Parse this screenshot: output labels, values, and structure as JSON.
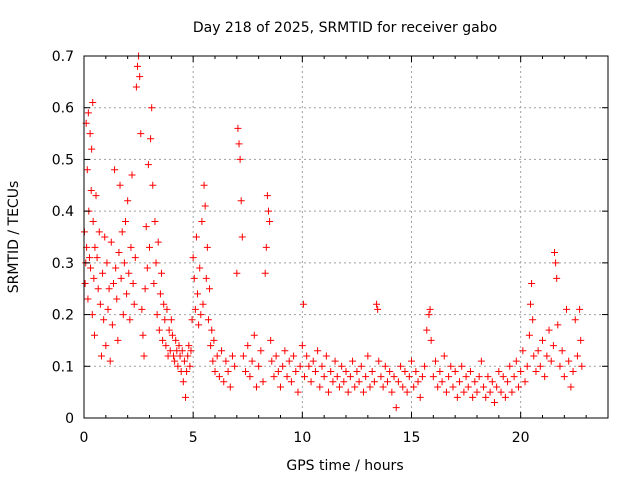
{
  "chart_data": {
    "type": "scatter",
    "title": "Day 218 of 2025, SRMTID for receiver gabo",
    "xlabel": "GPS time / hours",
    "ylabel": "SRMTID / TECUs",
    "xlim": [
      0,
      24
    ],
    "ylim": [
      0,
      0.7
    ],
    "xticks": [
      0,
      5,
      10,
      15,
      20
    ],
    "yticks": [
      0,
      0.1,
      0.2,
      0.3,
      0.4,
      0.5,
      0.6,
      0.7
    ],
    "grid": true,
    "marker": "+",
    "color": "#ff0000",
    "series": [
      {
        "name": "SRMTID",
        "points": [
          [
            0.02,
            0.36
          ],
          [
            0.05,
            0.26
          ],
          [
            0.08,
            0.3
          ],
          [
            0.1,
            0.57
          ],
          [
            0.12,
            0.33
          ],
          [
            0.15,
            0.48
          ],
          [
            0.18,
            0.23
          ],
          [
            0.2,
            0.59
          ],
          [
            0.22,
            0.4
          ],
          [
            0.25,
            0.31
          ],
          [
            0.28,
            0.55
          ],
          [
            0.3,
            0.29
          ],
          [
            0.33,
            0.44
          ],
          [
            0.35,
            0.52
          ],
          [
            0.38,
            0.2
          ],
          [
            0.4,
            0.61
          ],
          [
            0.42,
            0.38
          ],
          [
            0.45,
            0.27
          ],
          [
            0.48,
            0.16
          ],
          [
            0.5,
            0.33
          ],
          [
            0.55,
            0.43
          ],
          [
            0.6,
            0.31
          ],
          [
            0.65,
            0.25
          ],
          [
            0.7,
            0.36
          ],
          [
            0.75,
            0.22
          ],
          [
            0.8,
            0.12
          ],
          [
            0.85,
            0.28
          ],
          [
            0.9,
            0.19
          ],
          [
            0.95,
            0.35
          ],
          [
            1.0,
            0.14
          ],
          [
            1.05,
            0.3
          ],
          [
            1.1,
            0.21
          ],
          [
            1.15,
            0.25
          ],
          [
            1.2,
            0.11
          ],
          [
            1.25,
            0.34
          ],
          [
            1.3,
            0.18
          ],
          [
            1.35,
            0.26
          ],
          [
            1.4,
            0.48
          ],
          [
            1.45,
            0.29
          ],
          [
            1.5,
            0.23
          ],
          [
            1.55,
            0.15
          ],
          [
            1.6,
            0.32
          ],
          [
            1.65,
            0.45
          ],
          [
            1.7,
            0.27
          ],
          [
            1.75,
            0.36
          ],
          [
            1.8,
            0.2
          ],
          [
            1.85,
            0.3
          ],
          [
            1.9,
            0.38
          ],
          [
            1.95,
            0.24
          ],
          [
            2.0,
            0.42
          ],
          [
            2.05,
            0.28
          ],
          [
            2.1,
            0.19
          ],
          [
            2.15,
            0.33
          ],
          [
            2.2,
            0.47
          ],
          [
            2.25,
            0.26
          ],
          [
            2.3,
            0.22
          ],
          [
            2.35,
            0.31
          ],
          [
            2.4,
            0.64
          ],
          [
            2.45,
            0.68
          ],
          [
            2.5,
            0.7
          ],
          [
            2.55,
            0.66
          ],
          [
            2.6,
            0.55
          ],
          [
            2.65,
            0.21
          ],
          [
            2.7,
            0.16
          ],
          [
            2.75,
            0.12
          ],
          [
            2.8,
            0.25
          ],
          [
            2.85,
            0.37
          ],
          [
            2.9,
            0.29
          ],
          [
            2.95,
            0.49
          ],
          [
            3.0,
            0.33
          ],
          [
            3.05,
            0.54
          ],
          [
            3.1,
            0.6
          ],
          [
            3.15,
            0.45
          ],
          [
            3.2,
            0.26
          ],
          [
            3.25,
            0.38
          ],
          [
            3.3,
            0.3
          ],
          [
            3.35,
            0.2
          ],
          [
            3.4,
            0.34
          ],
          [
            3.45,
            0.17
          ],
          [
            3.5,
            0.24
          ],
          [
            3.55,
            0.28
          ],
          [
            3.6,
            0.15
          ],
          [
            3.65,
            0.22
          ],
          [
            3.7,
            0.19
          ],
          [
            3.75,
            0.14
          ],
          [
            3.8,
            0.21
          ],
          [
            3.85,
            0.12
          ],
          [
            3.9,
            0.17
          ],
          [
            3.95,
            0.13
          ],
          [
            4.0,
            0.19
          ],
          [
            4.05,
            0.16
          ],
          [
            4.1,
            0.12
          ],
          [
            4.15,
            0.11
          ],
          [
            4.2,
            0.15
          ],
          [
            4.25,
            0.13
          ],
          [
            4.3,
            0.1
          ],
          [
            4.35,
            0.14
          ],
          [
            4.4,
            0.12
          ],
          [
            4.45,
            0.09
          ],
          [
            4.5,
            0.13
          ],
          [
            4.55,
            0.07
          ],
          [
            4.6,
            0.11
          ],
          [
            4.65,
            0.04
          ],
          [
            4.7,
            0.09
          ],
          [
            4.75,
            0.12
          ],
          [
            4.8,
            0.14
          ],
          [
            4.85,
            0.1
          ],
          [
            4.9,
            0.13
          ],
          [
            4.95,
            0.19
          ],
          [
            5.0,
            0.31
          ],
          [
            5.05,
            0.27
          ],
          [
            5.1,
            0.21
          ],
          [
            5.15,
            0.35
          ],
          [
            5.2,
            0.24
          ],
          [
            5.25,
            0.18
          ],
          [
            5.3,
            0.29
          ],
          [
            5.35,
            0.2
          ],
          [
            5.4,
            0.38
          ],
          [
            5.45,
            0.22
          ],
          [
            5.5,
            0.45
          ],
          [
            5.55,
            0.41
          ],
          [
            5.6,
            0.27
          ],
          [
            5.65,
            0.33
          ],
          [
            5.7,
            0.19
          ],
          [
            5.75,
            0.25
          ],
          [
            5.8,
            0.14
          ],
          [
            5.85,
            0.17
          ],
          [
            5.9,
            0.11
          ],
          [
            5.95,
            0.15
          ],
          [
            6.0,
            0.09
          ],
          [
            6.1,
            0.12
          ],
          [
            6.2,
            0.08
          ],
          [
            6.3,
            0.13
          ],
          [
            6.4,
            0.07
          ],
          [
            6.5,
            0.11
          ],
          [
            6.6,
            0.09
          ],
          [
            6.7,
            0.06
          ],
          [
            6.8,
            0.12
          ],
          [
            6.9,
            0.1
          ],
          [
            7.0,
            0.28
          ],
          [
            7.05,
            0.56
          ],
          [
            7.1,
            0.53
          ],
          [
            7.15,
            0.5
          ],
          [
            7.2,
            0.42
          ],
          [
            7.25,
            0.35
          ],
          [
            7.3,
            0.12
          ],
          [
            7.4,
            0.09
          ],
          [
            7.5,
            0.14
          ],
          [
            7.6,
            0.08
          ],
          [
            7.7,
            0.11
          ],
          [
            7.8,
            0.16
          ],
          [
            7.9,
            0.06
          ],
          [
            8.0,
            0.1
          ],
          [
            8.1,
            0.13
          ],
          [
            8.2,
            0.07
          ],
          [
            8.3,
            0.28
          ],
          [
            8.35,
            0.33
          ],
          [
            8.4,
            0.43
          ],
          [
            8.45,
            0.4
          ],
          [
            8.5,
            0.38
          ],
          [
            8.55,
            0.15
          ],
          [
            8.6,
            0.11
          ],
          [
            8.7,
            0.08
          ],
          [
            8.8,
            0.12
          ],
          [
            8.9,
            0.09
          ],
          [
            9.0,
            0.06
          ],
          [
            9.1,
            0.1
          ],
          [
            9.2,
            0.13
          ],
          [
            9.3,
            0.08
          ],
          [
            9.4,
            0.11
          ],
          [
            9.5,
            0.07
          ],
          [
            9.6,
            0.12
          ],
          [
            9.7,
            0.09
          ],
          [
            9.8,
            0.05
          ],
          [
            9.9,
            0.1
          ],
          [
            10.0,
            0.14
          ],
          [
            10.05,
            0.22
          ],
          [
            10.1,
            0.08
          ],
          [
            10.2,
            0.12
          ],
          [
            10.3,
            0.1
          ],
          [
            10.4,
            0.07
          ],
          [
            10.5,
            0.11
          ],
          [
            10.6,
            0.09
          ],
          [
            10.7,
            0.13
          ],
          [
            10.8,
            0.06
          ],
          [
            10.9,
            0.1
          ],
          [
            11.0,
            0.08
          ],
          [
            11.1,
            0.12
          ],
          [
            11.2,
            0.05
          ],
          [
            11.3,
            0.09
          ],
          [
            11.4,
            0.07
          ],
          [
            11.5,
            0.11
          ],
          [
            11.6,
            0.08
          ],
          [
            11.7,
            0.06
          ],
          [
            11.8,
            0.1
          ],
          [
            11.9,
            0.07
          ],
          [
            12.0,
            0.09
          ],
          [
            12.1,
            0.05
          ],
          [
            12.2,
            0.08
          ],
          [
            12.3,
            0.11
          ],
          [
            12.4,
            0.06
          ],
          [
            12.5,
            0.09
          ],
          [
            12.6,
            0.07
          ],
          [
            12.7,
            0.1
          ],
          [
            12.8,
            0.05
          ],
          [
            12.9,
            0.08
          ],
          [
            13.0,
            0.12
          ],
          [
            13.1,
            0.06
          ],
          [
            13.2,
            0.09
          ],
          [
            13.3,
            0.07
          ],
          [
            13.4,
            0.22
          ],
          [
            13.45,
            0.21
          ],
          [
            13.5,
            0.11
          ],
          [
            13.6,
            0.08
          ],
          [
            13.7,
            0.06
          ],
          [
            13.8,
            0.1
          ],
          [
            13.9,
            0.07
          ],
          [
            14.0,
            0.09
          ],
          [
            14.1,
            0.05
          ],
          [
            14.2,
            0.08
          ],
          [
            14.3,
            0.02
          ],
          [
            14.4,
            0.07
          ],
          [
            14.5,
            0.1
          ],
          [
            14.6,
            0.06
          ],
          [
            14.7,
            0.09
          ],
          [
            14.8,
            0.05
          ],
          [
            14.9,
            0.08
          ],
          [
            15.0,
            0.11
          ],
          [
            15.1,
            0.06
          ],
          [
            15.2,
            0.09
          ],
          [
            15.3,
            0.07
          ],
          [
            15.4,
            0.04
          ],
          [
            15.5,
            0.08
          ],
          [
            15.6,
            0.1
          ],
          [
            15.7,
            0.17
          ],
          [
            15.8,
            0.2
          ],
          [
            15.85,
            0.21
          ],
          [
            15.9,
            0.15
          ],
          [
            16.0,
            0.08
          ],
          [
            16.1,
            0.11
          ],
          [
            16.2,
            0.06
          ],
          [
            16.3,
            0.09
          ],
          [
            16.4,
            0.07
          ],
          [
            16.5,
            0.12
          ],
          [
            16.6,
            0.05
          ],
          [
            16.7,
            0.08
          ],
          [
            16.8,
            0.1
          ],
          [
            16.9,
            0.06
          ],
          [
            17.0,
            0.09
          ],
          [
            17.1,
            0.04
          ],
          [
            17.2,
            0.07
          ],
          [
            17.3,
            0.1
          ],
          [
            17.4,
            0.05
          ],
          [
            17.5,
            0.08
          ],
          [
            17.6,
            0.06
          ],
          [
            17.7,
            0.09
          ],
          [
            17.8,
            0.04
          ],
          [
            17.9,
            0.07
          ],
          [
            18.0,
            0.05
          ],
          [
            18.1,
            0.08
          ],
          [
            18.2,
            0.11
          ],
          [
            18.3,
            0.06
          ],
          [
            18.4,
            0.04
          ],
          [
            18.5,
            0.08
          ],
          [
            18.6,
            0.05
          ],
          [
            18.7,
            0.07
          ],
          [
            18.8,
            0.03
          ],
          [
            18.9,
            0.06
          ],
          [
            19.0,
            0.09
          ],
          [
            19.1,
            0.05
          ],
          [
            19.2,
            0.08
          ],
          [
            19.3,
            0.04
          ],
          [
            19.4,
            0.07
          ],
          [
            19.5,
            0.1
          ],
          [
            19.6,
            0.05
          ],
          [
            19.7,
            0.08
          ],
          [
            19.8,
            0.11
          ],
          [
            19.9,
            0.06
          ],
          [
            20.0,
            0.09
          ],
          [
            20.1,
            0.13
          ],
          [
            20.2,
            0.07
          ],
          [
            20.3,
            0.1
          ],
          [
            20.4,
            0.16
          ],
          [
            20.45,
            0.22
          ],
          [
            20.5,
            0.26
          ],
          [
            20.55,
            0.19
          ],
          [
            20.6,
            0.12
          ],
          [
            20.7,
            0.09
          ],
          [
            20.8,
            0.13
          ],
          [
            20.9,
            0.1
          ],
          [
            21.0,
            0.15
          ],
          [
            21.1,
            0.08
          ],
          [
            21.2,
            0.12
          ],
          [
            21.3,
            0.17
          ],
          [
            21.4,
            0.11
          ],
          [
            21.5,
            0.14
          ],
          [
            21.55,
            0.32
          ],
          [
            21.6,
            0.3
          ],
          [
            21.65,
            0.27
          ],
          [
            21.7,
            0.18
          ],
          [
            21.8,
            0.1
          ],
          [
            21.9,
            0.13
          ],
          [
            22.0,
            0.08
          ],
          [
            22.1,
            0.21
          ],
          [
            22.2,
            0.11
          ],
          [
            22.3,
            0.06
          ],
          [
            22.4,
            0.09
          ],
          [
            22.5,
            0.19
          ],
          [
            22.6,
            0.12
          ],
          [
            22.7,
            0.21
          ],
          [
            22.75,
            0.15
          ],
          [
            22.8,
            0.1
          ]
        ]
      }
    ]
  }
}
